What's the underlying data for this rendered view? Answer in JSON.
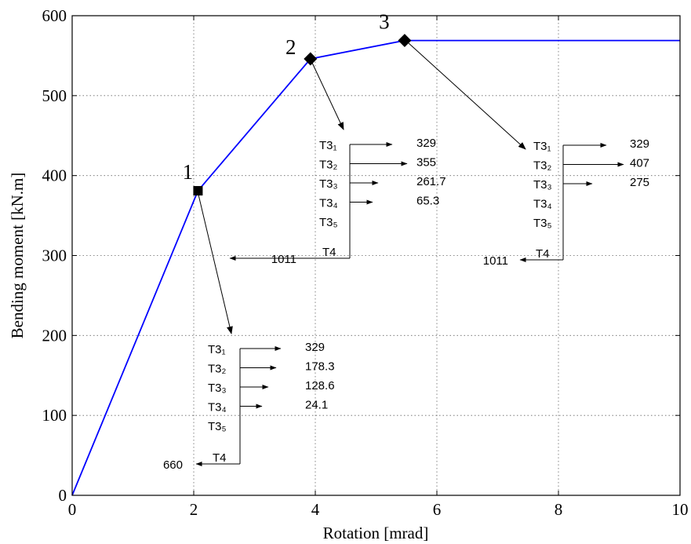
{
  "chart_data": {
    "type": "line",
    "title": "",
    "xlabel": "Rotation [mrad]",
    "ylabel": "Bending moment [kN.m]",
    "xlim": [
      0,
      10
    ],
    "ylim": [
      0,
      600
    ],
    "xticks": [
      "0",
      "2",
      "4",
      "6",
      "8",
      "10"
    ],
    "yticks": [
      "0",
      "100",
      "200",
      "300",
      "400",
      "500",
      "600"
    ],
    "grid": true,
    "line_color": "#0000ff",
    "series": [
      {
        "x": [
          0,
          2.07,
          3.92,
          5.47,
          10
        ],
        "y": [
          0,
          381,
          546,
          569,
          569
        ]
      }
    ],
    "points": [
      {
        "label": "1",
        "x": 2.07,
        "y": 381
      },
      {
        "label": "2",
        "x": 3.92,
        "y": 546
      },
      {
        "label": "3",
        "x": 5.47,
        "y": 569
      }
    ],
    "force_diagrams": [
      {
        "point": "1",
        "rows": [
          {
            "name": "T3₁",
            "value": "329"
          },
          {
            "name": "T3₂",
            "value": "178.3"
          },
          {
            "name": "T3₃",
            "value": "128.6"
          },
          {
            "name": "T3₄",
            "value": "24.1"
          },
          {
            "name": "T3₅",
            "value": ""
          }
        ],
        "compression": {
          "name": "T4",
          "value": "660"
        }
      },
      {
        "point": "2",
        "rows": [
          {
            "name": "T3₁",
            "value": "329"
          },
          {
            "name": "T3₂",
            "value": "355"
          },
          {
            "name": "T3₃",
            "value": "261.7"
          },
          {
            "name": "T3₄",
            "value": "65.3"
          },
          {
            "name": "T3₅",
            "value": ""
          }
        ],
        "compression": {
          "name": "T4",
          "value": "1011"
        }
      },
      {
        "point": "3",
        "rows": [
          {
            "name": "T3₁",
            "value": "329"
          },
          {
            "name": "T3₂",
            "value": "407"
          },
          {
            "name": "T3₃",
            "value": "275"
          },
          {
            "name": "T3₄",
            "value": ""
          },
          {
            "name": "T3₅",
            "value": ""
          }
        ],
        "compression": {
          "name": "T4",
          "value": "1011"
        }
      }
    ]
  }
}
